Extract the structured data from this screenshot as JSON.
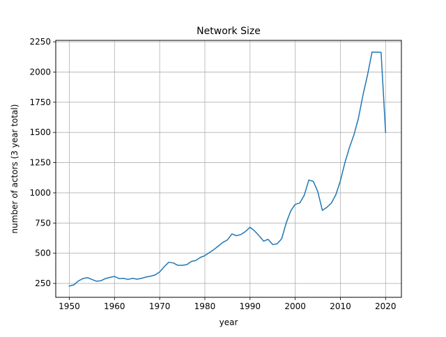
{
  "chart_data": {
    "type": "line",
    "title": "Network Size",
    "xlabel": "year",
    "ylabel": "number of actors (3 year total)",
    "xlim": [
      1947,
      2023.5
    ],
    "ylim": [
      135,
      2262
    ],
    "grid": true,
    "xticks": [
      1950,
      1960,
      1970,
      1980,
      1990,
      2000,
      2010,
      2020
    ],
    "yticks": [
      250,
      500,
      750,
      1000,
      1250,
      1500,
      1750,
      2000,
      2250
    ],
    "series_color": "#1f77b4",
    "series": [
      {
        "x": [
          1950,
          1951,
          1952,
          1953,
          1954,
          1955,
          1956,
          1957,
          1958,
          1959,
          1960,
          1961,
          1962,
          1963,
          1964,
          1965,
          1966,
          1967,
          1968,
          1969,
          1970,
          1971,
          1972,
          1973,
          1974,
          1975,
          1976,
          1977,
          1978,
          1979,
          1980,
          1981,
          1982,
          1983,
          1984,
          1985,
          1986,
          1987,
          1988,
          1989,
          1990,
          1991,
          1992,
          1993,
          1994,
          1995,
          1996,
          1997,
          1998,
          1999,
          2000,
          2001,
          2002,
          2003,
          2004,
          2005,
          2006,
          2007,
          2008,
          2009,
          2010,
          2011,
          2012,
          2013,
          2014,
          2015,
          2016,
          2017,
          2018,
          2019,
          2020
        ],
        "values": [
          228,
          238,
          270,
          290,
          298,
          283,
          268,
          272,
          290,
          300,
          308,
          290,
          292,
          283,
          292,
          285,
          293,
          303,
          310,
          320,
          345,
          388,
          425,
          420,
          400,
          400,
          405,
          432,
          440,
          465,
          480,
          505,
          530,
          560,
          590,
          610,
          660,
          645,
          655,
          680,
          715,
          685,
          645,
          600,
          615,
          572,
          578,
          620,
          750,
          850,
          905,
          915,
          980,
          1105,
          1095,
          1010,
          855,
          880,
          915,
          985,
          1100,
          1250,
          1375,
          1480,
          1620,
          1810,
          1975,
          2165,
          2165,
          2163,
          1500
        ]
      }
    ]
  }
}
